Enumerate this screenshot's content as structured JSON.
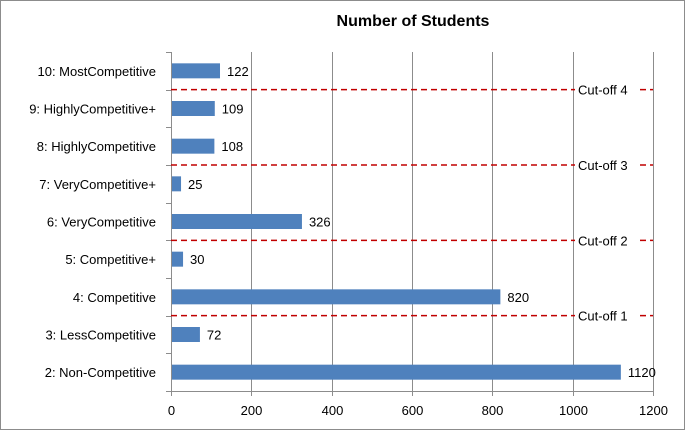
{
  "chart_data": {
    "type": "bar",
    "orientation": "horizontal",
    "title": "Number of Students",
    "categories": [
      "10: MostCompetitive",
      "9: HighlyCompetitive+",
      "8: HighlyCompetitive",
      "7: VeryCompetitive+",
      "6: VeryCompetitive",
      "5: Competitive+",
      "4: Competitive",
      "3: LessCompetitive",
      "2: Non-Competitive"
    ],
    "values": [
      122,
      109,
      108,
      25,
      326,
      30,
      820,
      72,
      1120
    ],
    "xlim": [
      0,
      1200
    ],
    "xticks": [
      0,
      200,
      400,
      600,
      800,
      1000,
      1200
    ],
    "grid": "vertical",
    "bar_color": "#4f81bd",
    "cutoffs": [
      {
        "label": "Cut-off 4",
        "between": [
          "10: MostCompetitive",
          "9: HighlyCompetitive+"
        ]
      },
      {
        "label": "Cut-off 3",
        "between": [
          "8: HighlyCompetitive",
          "7: VeryCompetitive+"
        ]
      },
      {
        "label": "Cut-off 2",
        "between": [
          "6: VeryCompetitive",
          "5: Competitive+"
        ]
      },
      {
        "label": "Cut-off 1",
        "between": [
          "4: Competitive",
          "3: LessCompetitive"
        ]
      }
    ],
    "cutoff_color": "#c00000"
  }
}
